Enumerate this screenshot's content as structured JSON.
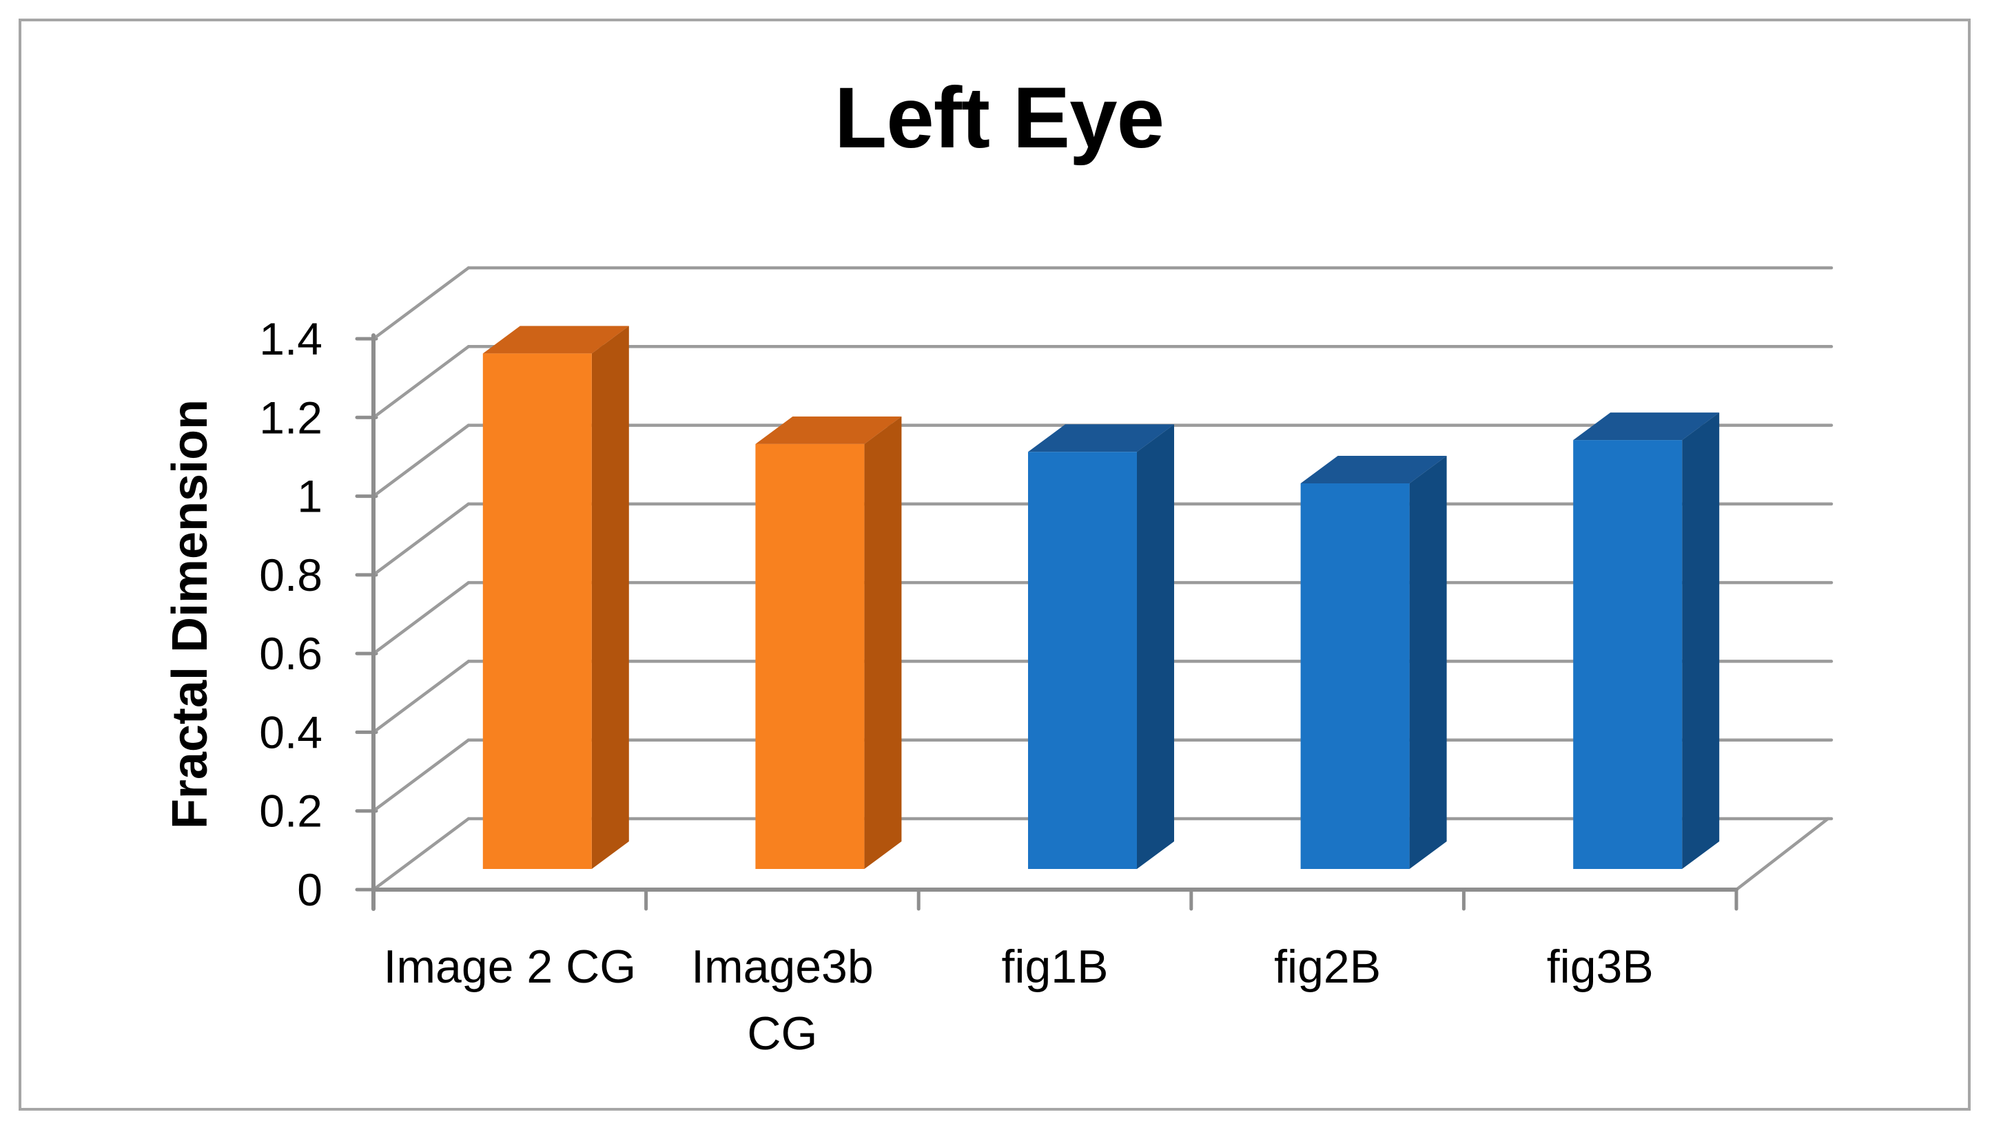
{
  "chart_data": {
    "type": "bar",
    "variant": "3d-clustered-column",
    "title": "Left Eye",
    "xlabel": "",
    "ylabel": "Fractal Dimension",
    "categories": [
      "Image 2 CG",
      "Image3b CG",
      "fig1B",
      "fig2B",
      "fig3B"
    ],
    "category_labels_wrapped": [
      "Image 2 CG",
      "Image3b\nCG",
      "fig1B",
      "fig2B",
      "fig3B"
    ],
    "values": [
      1.31,
      1.08,
      1.06,
      0.98,
      1.09
    ],
    "bar_palette": [
      "orange",
      "orange",
      "blue",
      "blue",
      "blue"
    ],
    "yaxis": {
      "min": 0,
      "max": 1.4,
      "step": 0.2,
      "tick_values": [
        0,
        0.2,
        0.4,
        0.6,
        0.8,
        1,
        1.2,
        1.4
      ],
      "tick_labels": [
        "0",
        "0.2",
        "0.4",
        "0.6",
        "0.8",
        "1",
        "1.2",
        "1.4"
      ]
    },
    "grid": true,
    "legend": "none",
    "palette": {
      "orange": {
        "front": "#F8811F",
        "top": "#CE6317",
        "side": "#B2540D"
      },
      "blue": {
        "front": "#1B74C5",
        "top": "#1A5694",
        "side": "#114A80"
      }
    },
    "gridline_color": "#9B9B9B",
    "axis_color": "#8E8E8E",
    "border_color": "#A6A6A6",
    "text_color": "#000000"
  }
}
